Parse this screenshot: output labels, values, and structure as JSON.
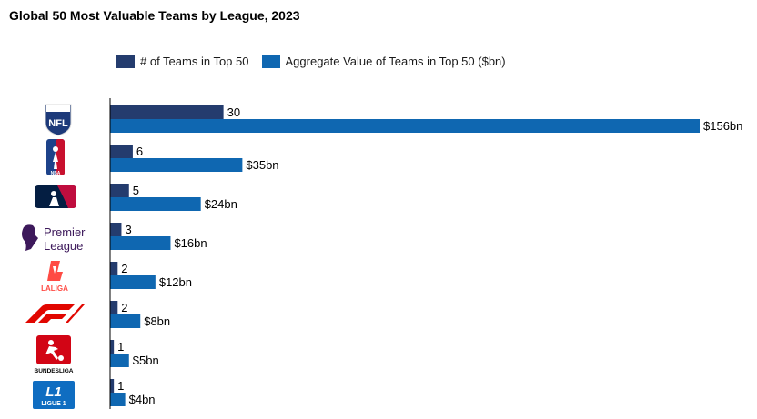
{
  "title": "Global 50 Most Valuable Teams by League, 2023",
  "legend": {
    "series1": "# of Teams in Top 50",
    "series2": "Aggregate Value of Teams in Top 50 ($bn)"
  },
  "colors": {
    "series1": "#243C6E",
    "series2": "#0F67B1",
    "axis": "#000000"
  },
  "logos": {
    "nfl": {
      "icon": "nfl-logo",
      "text": "NFL"
    },
    "nba": {
      "icon": "nba-logo",
      "text": "NBA"
    },
    "mlb": {
      "icon": "mlb-logo"
    },
    "premier_league": {
      "icon": "premier-league-logo",
      "line1": "Premier",
      "line2": "League"
    },
    "laliga": {
      "icon": "laliga-logo",
      "text": "LALIGA"
    },
    "f1": {
      "icon": "f1-logo"
    },
    "bundesliga": {
      "icon": "bundesliga-logo",
      "text": "BUNDESLIGA"
    },
    "ligue1": {
      "icon": "ligue1-logo",
      "line1": "L1",
      "line2": "LIGUE 1"
    }
  },
  "chart_data": {
    "type": "bar",
    "orientation": "horizontal",
    "title": "Global 50 Most Valuable Teams by League, 2023",
    "categories": [
      "NFL",
      "NBA",
      "MLB",
      "Premier League",
      "LaLiga",
      "F1",
      "Bundesliga",
      "Ligue 1"
    ],
    "series": [
      {
        "name": "# of Teams in Top 50",
        "values": [
          30,
          6,
          5,
          3,
          2,
          2,
          1,
          1
        ],
        "labels": [
          "30",
          "6",
          "5",
          "3",
          "2",
          "2",
          "1",
          "1"
        ]
      },
      {
        "name": "Aggregate Value of Teams in Top 50 ($bn)",
        "values": [
          156,
          35,
          24,
          16,
          12,
          8,
          5,
          4
        ],
        "labels": [
          "$156bn",
          "$35bn",
          "$24bn",
          "$16bn",
          "$12bn",
          "$8bn",
          "$5bn",
          "$4bn"
        ]
      }
    ],
    "xlim": [
      0,
      156
    ],
    "legend_position": "top",
    "grid": false
  }
}
